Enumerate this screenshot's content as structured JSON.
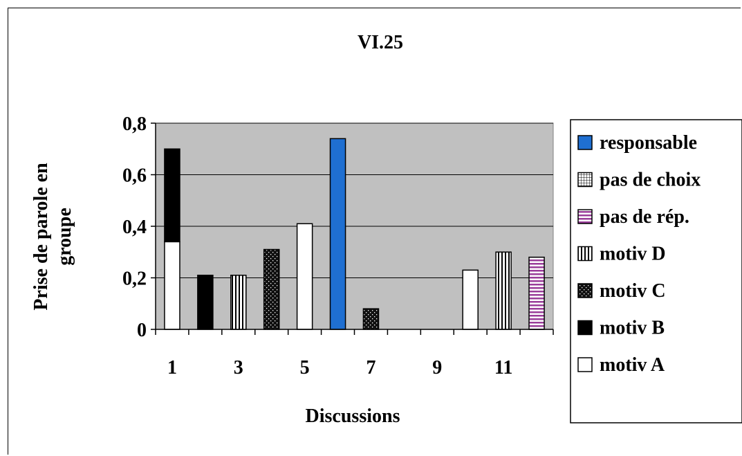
{
  "chart_data": {
    "type": "bar",
    "title": "VI.25",
    "xlabel": "Discussions",
    "ylabel": "Prise de parole en groupe",
    "ylabel_lines": [
      "Prise de parole en",
      "groupe"
    ],
    "ylim": [
      0,
      0.8
    ],
    "yticks": [
      "0",
      "0,2",
      "0,4",
      "0,6",
      "0,8"
    ],
    "ytick_values": [
      0,
      0.2,
      0.4,
      0.6,
      0.8
    ],
    "categories": [
      1,
      2,
      3,
      4,
      5,
      6,
      7,
      8,
      9,
      10,
      11,
      12
    ],
    "xtick_labels": [
      "1",
      "3",
      "5",
      "7",
      "9",
      "11"
    ],
    "xtick_categories": [
      1,
      3,
      5,
      7,
      9,
      11
    ],
    "grid": true,
    "stacked": true,
    "legend_position": "right",
    "plot_background": "#c0c0c0",
    "series": [
      {
        "name": "motiv A",
        "pattern": "white",
        "color": "#ffffff",
        "values": [
          0.34,
          0,
          0,
          0,
          0.41,
          0,
          0,
          0,
          0,
          0.23,
          0,
          0
        ]
      },
      {
        "name": "motiv B",
        "pattern": "black",
        "color": "#000000",
        "values": [
          0.36,
          0.21,
          0,
          0,
          0,
          0,
          0,
          0,
          0,
          0,
          0,
          0
        ]
      },
      {
        "name": "motiv C",
        "pattern": "dots",
        "color": "#000000",
        "values": [
          0,
          0,
          0,
          0.31,
          0,
          0,
          0.08,
          0,
          0,
          0,
          0,
          0
        ]
      },
      {
        "name": "motiv D",
        "pattern": "vstripe",
        "color": "#000000",
        "values": [
          0,
          0,
          0.21,
          0,
          0,
          0,
          0,
          0,
          0,
          0,
          0.3,
          0
        ]
      },
      {
        "name": "pas de rép.",
        "pattern": "hstripe",
        "color": "#9a3d9a",
        "values": [
          0,
          0,
          0,
          0,
          0,
          0,
          0,
          0,
          0,
          0,
          0,
          0.28
        ]
      },
      {
        "name": "pas de choix",
        "pattern": "grid",
        "color": "#000000",
        "values": [
          0,
          0,
          0,
          0,
          0,
          0,
          0,
          0,
          0,
          0,
          0,
          0
        ]
      },
      {
        "name": "responsable",
        "pattern": "blue",
        "color": "#1f6fd1",
        "values": [
          0,
          0,
          0,
          0,
          0,
          0.74,
          0,
          0,
          0,
          0,
          0,
          0
        ]
      }
    ],
    "legend_order": [
      "responsable",
      "pas de choix",
      "pas de rép.",
      "motiv D",
      "motiv C",
      "motiv B",
      "motiv A"
    ]
  }
}
